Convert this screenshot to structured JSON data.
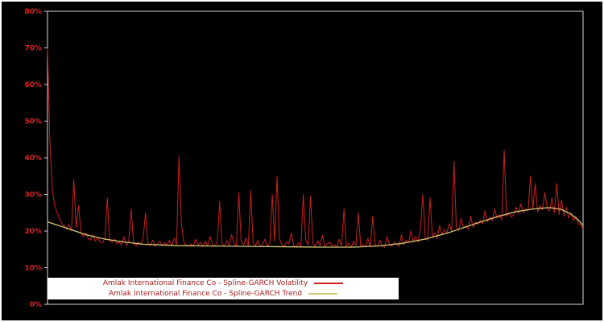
{
  "window": {
    "background": "#000000",
    "border_color": "#ffffff"
  },
  "chart_data": {
    "type": "line",
    "title": "",
    "xlabel": "",
    "ylabel": "",
    "ylim": [
      0,
      80
    ],
    "x_axis_labels_visible": false,
    "grid": false,
    "background": "#000000",
    "frame_color": "#d8d8d8",
    "tick_label_color": "#dd2222",
    "y_ticks": {
      "values": [
        0,
        10,
        20,
        30,
        40,
        50,
        60,
        70,
        80
      ],
      "labels": [
        "0%",
        "10%",
        "20%",
        "30%",
        "40%",
        "50%",
        "60%",
        "70%",
        "80%"
      ]
    },
    "legend": {
      "position": "bottom-left-inside",
      "background": "#ffffff",
      "text_color": "#a41e1e"
    },
    "series": [
      {
        "name": "Amlak International Finance Co - Spline-GARCH Volatility",
        "color": "#cc1f1f",
        "kind": "raw",
        "values": [
          70.0,
          44.0,
          31.5,
          27.0,
          25.0,
          23.5,
          22.0,
          21.5,
          20.5,
          21.8,
          20.0,
          34.0,
          21.0,
          27.0,
          19.5,
          18.5,
          19.5,
          18.0,
          17.5,
          19.0,
          17.2,
          18.3,
          17.0,
          16.8,
          18.0,
          29.0,
          17.5,
          16.9,
          17.8,
          16.5,
          17.0,
          16.2,
          18.5,
          16.0,
          17.3,
          26.0,
          16.5,
          15.9,
          17.0,
          16.3,
          18.0,
          25.0,
          16.8,
          16.0,
          17.5,
          15.8,
          16.5,
          17.2,
          15.9,
          16.8,
          16.2,
          17.5,
          16.0,
          18.0,
          16.4,
          40.5,
          22.0,
          17.0,
          16.2,
          15.8,
          16.5,
          15.9,
          17.8,
          16.1,
          16.9,
          15.7,
          17.2,
          16.0,
          18.5,
          16.3,
          15.8,
          17.0,
          28.0,
          16.5,
          15.9,
          17.4,
          16.1,
          19.0,
          16.6,
          15.8,
          30.5,
          17.0,
          16.2,
          18.0,
          15.9,
          31.0,
          16.8,
          16.0,
          17.5,
          15.7,
          16.4,
          17.8,
          15.9,
          16.6,
          30.0,
          17.2,
          35.0,
          18.0,
          16.3,
          15.8,
          17.0,
          16.5,
          19.5,
          16.0,
          15.6,
          16.8,
          15.9,
          30.0,
          17.5,
          16.2,
          29.5,
          16.6,
          15.8,
          17.3,
          16.0,
          18.8,
          15.7,
          16.5,
          17.0,
          15.9,
          16.3,
          15.6,
          17.8,
          16.0,
          26.0,
          15.8,
          16.7,
          15.5,
          17.2,
          16.1,
          25.0,
          15.9,
          16.4,
          15.6,
          18.0,
          15.7,
          24.0,
          16.2,
          15.8,
          17.5,
          16.0,
          15.6,
          18.5,
          16.3,
          15.9,
          17.0,
          16.5,
          15.8,
          19.0,
          16.2,
          17.5,
          16.8,
          20.0,
          17.2,
          18.5,
          17.0,
          21.0,
          30.0,
          18.0,
          17.5,
          29.0,
          18.5,
          19.5,
          18.0,
          21.5,
          19.0,
          20.5,
          19.5,
          22.0,
          20.0,
          39.0,
          21.0,
          20.2,
          23.5,
          20.8,
          21.5,
          20.5,
          24.0,
          21.0,
          22.5,
          21.8,
          23.0,
          22.0,
          25.5,
          22.5,
          23.8,
          22.8,
          26.0,
          23.5,
          24.5,
          23.0,
          42.0,
          24.0,
          25.0,
          23.8,
          24.5,
          26.5,
          24.8,
          27.5,
          25.0,
          26.0,
          25.5,
          35.0,
          26.0,
          33.0,
          25.2,
          27.0,
          25.8,
          30.5,
          26.2,
          25.5,
          29.0,
          25.0,
          33.0,
          24.5,
          28.5,
          24.0,
          26.5,
          23.5,
          25.0,
          22.8,
          24.0,
          22.0,
          21.5,
          20.5
        ]
      },
      {
        "name": "Amlak International Finance Co - Spline-GARCH Trend",
        "color": "#d6c973",
        "kind": "spline-keypoints",
        "points": [
          [
            0,
            22.5
          ],
          [
            8,
            20.8
          ],
          [
            16,
            19.0
          ],
          [
            24,
            17.8
          ],
          [
            32,
            17.0
          ],
          [
            40,
            16.4
          ],
          [
            55,
            16.0
          ],
          [
            70,
            15.9
          ],
          [
            85,
            15.8
          ],
          [
            100,
            15.7
          ],
          [
            115,
            15.6
          ],
          [
            128,
            15.6
          ],
          [
            138,
            15.9
          ],
          [
            148,
            16.6
          ],
          [
            158,
            17.8
          ],
          [
            168,
            19.6
          ],
          [
            178,
            21.8
          ],
          [
            188,
            23.9
          ],
          [
            196,
            25.3
          ],
          [
            204,
            26.1
          ],
          [
            210,
            26.4
          ],
          [
            215,
            25.9
          ],
          [
            219,
            24.6
          ],
          [
            222,
            23.0
          ],
          [
            224,
            21.5
          ]
        ]
      }
    ]
  }
}
